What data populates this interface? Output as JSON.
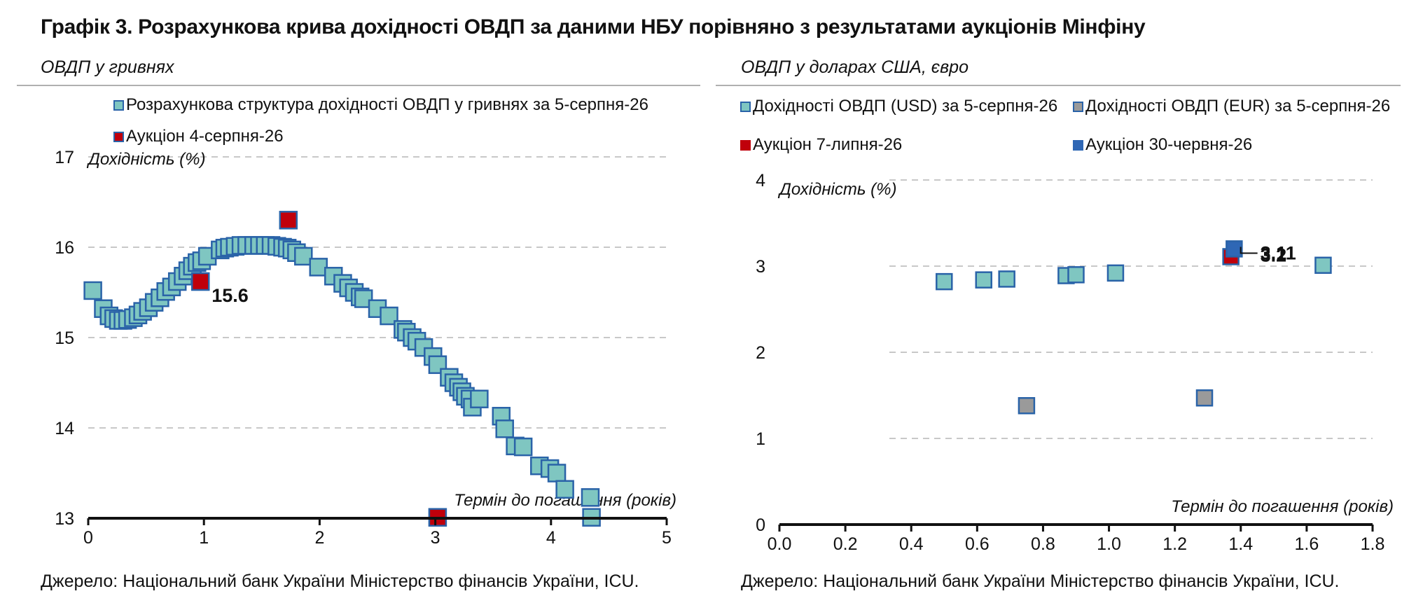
{
  "figure": {
    "title": "Графік 3. Розрахункова крива дохідності ОВДП за даними НБУ порівняно з результатами аукціонів Мінфіну"
  },
  "colors": {
    "teal": "#7fc6c1",
    "teal_border": "#2a63a8",
    "red": "#c0000b",
    "gray": "#9a9a9a",
    "blue": "#2f67b5",
    "grid": "#c8c8c8",
    "axis": "#111111"
  },
  "chart_data": [
    {
      "type": "scatter",
      "subtitle": "ОВДП у гривнях",
      "source": "Джерело: Національний банк України Міністерство фінансів України, ICU.",
      "ylabel": "Дохідність (%)",
      "xlabel": "Термін до погашення (років)",
      "xlim": [
        0,
        5
      ],
      "ylim": [
        13,
        17
      ],
      "x_ticks": [
        0,
        1,
        2,
        3,
        4,
        5
      ],
      "y_ticks": [
        13,
        14,
        15,
        16,
        17
      ],
      "grid": true,
      "legend_position": "top",
      "series": [
        {
          "name": "Розрахункова структура дохідності ОВДП у гривнях за 5-серпня-26",
          "color": "teal",
          "points": [
            [
              0.04,
              15.52
            ],
            [
              0.13,
              15.32
            ],
            [
              0.18,
              15.24
            ],
            [
              0.22,
              15.21
            ],
            [
              0.26,
              15.19
            ],
            [
              0.3,
              15.19
            ],
            [
              0.34,
              15.2
            ],
            [
              0.39,
              15.22
            ],
            [
              0.43,
              15.25
            ],
            [
              0.47,
              15.29
            ],
            [
              0.52,
              15.33
            ],
            [
              0.57,
              15.39
            ],
            [
              0.62,
              15.44
            ],
            [
              0.67,
              15.51
            ],
            [
              0.72,
              15.56
            ],
            [
              0.77,
              15.62
            ],
            [
              0.82,
              15.68
            ],
            [
              0.86,
              15.74
            ],
            [
              0.9,
              15.79
            ],
            [
              0.94,
              15.83
            ],
            [
              0.98,
              15.85
            ],
            [
              1.03,
              15.9
            ],
            [
              1.14,
              15.97
            ],
            [
              1.18,
              15.99
            ],
            [
              1.22,
              16.0
            ],
            [
              1.27,
              16.01
            ],
            [
              1.32,
              16.02
            ],
            [
              1.37,
              16.02
            ],
            [
              1.43,
              16.02
            ],
            [
              1.48,
              16.02
            ],
            [
              1.53,
              16.02
            ],
            [
              1.58,
              16.02
            ],
            [
              1.63,
              16.01
            ],
            [
              1.68,
              16.0
            ],
            [
              1.72,
              15.99
            ],
            [
              1.76,
              15.97
            ],
            [
              1.8,
              15.94
            ],
            [
              1.86,
              15.9
            ],
            [
              1.99,
              15.78
            ],
            [
              2.12,
              15.68
            ],
            [
              2.2,
              15.6
            ],
            [
              2.25,
              15.55
            ],
            [
              2.3,
              15.5
            ],
            [
              2.35,
              15.45
            ],
            [
              2.38,
              15.43
            ],
            [
              2.5,
              15.32
            ],
            [
              2.6,
              15.24
            ],
            [
              2.72,
              15.09
            ],
            [
              2.75,
              15.06
            ],
            [
              2.8,
              15.0
            ],
            [
              2.84,
              14.96
            ],
            [
              2.9,
              14.89
            ],
            [
              2.98,
              14.79
            ],
            [
              3.02,
              14.7
            ],
            [
              3.12,
              14.56
            ],
            [
              3.16,
              14.5
            ],
            [
              3.2,
              14.45
            ],
            [
              3.23,
              14.4
            ],
            [
              3.26,
              14.35
            ],
            [
              3.3,
              14.32
            ],
            [
              3.32,
              14.23
            ],
            [
              3.38,
              14.32
            ],
            [
              3.57,
              14.13
            ],
            [
              3.6,
              13.99
            ],
            [
              3.69,
              13.8
            ],
            [
              3.76,
              13.79
            ],
            [
              3.9,
              13.58
            ],
            [
              3.99,
              13.55
            ],
            [
              4.05,
              13.5
            ],
            [
              4.12,
              13.32
            ],
            [
              4.34,
              13.23
            ],
            [
              4.35,
              13.01
            ]
          ]
        },
        {
          "name": "Аукціон 4-серпня-26",
          "color": "red",
          "points": [
            [
              0.97,
              15.62
            ],
            [
              1.73,
              16.3
            ],
            [
              3.02,
              13.01
            ]
          ],
          "labels": [
            {
              "point_index": 0,
              "text": "15.6"
            }
          ]
        }
      ]
    },
    {
      "type": "scatter",
      "subtitle": "ОВДП у доларах США, євро",
      "source": "Джерело: Національний банк України Міністерство фінансів України, ICU.",
      "ylabel": "Дохідність (%)",
      "xlabel": "Термін до погашення (років)",
      "xlim": [
        0,
        1.8
      ],
      "ylim": [
        0,
        4
      ],
      "x_ticks": [
        "0.0",
        "0.2",
        "0.4",
        "0.6",
        "0.8",
        "1.0",
        "1.2",
        "1.4",
        "1.6",
        "1.8"
      ],
      "y_ticks": [
        0,
        1,
        2,
        3,
        4
      ],
      "grid": true,
      "legend_position": "top",
      "series": [
        {
          "name": "Дохідності ОВДП (USD) за 5-серпня-26",
          "color": "teal",
          "points": [
            [
              0.5,
              2.82
            ],
            [
              0.62,
              2.84
            ],
            [
              0.69,
              2.85
            ],
            [
              0.87,
              2.89
            ],
            [
              0.9,
              2.9
            ],
            [
              1.02,
              2.92
            ],
            [
              1.65,
              3.01
            ]
          ]
        },
        {
          "name": "Дохідності ОВДП (EUR) за 5-серпня-26",
          "color": "gray",
          "points": [
            [
              0.75,
              1.38
            ],
            [
              1.29,
              1.47
            ]
          ]
        },
        {
          "name": "Аукціон 7-липня-26",
          "color": "red",
          "points": [
            [
              1.37,
              3.11
            ]
          ],
          "labels": [
            {
              "point_index": 0,
              "text": "3.11"
            }
          ]
        },
        {
          "name": "Аукціон 30-червня-26",
          "color": "blue",
          "points": [
            [
              1.38,
              3.2
            ]
          ],
          "labels": [
            {
              "point_index": 0,
              "text": "3.2"
            }
          ]
        }
      ]
    }
  ]
}
